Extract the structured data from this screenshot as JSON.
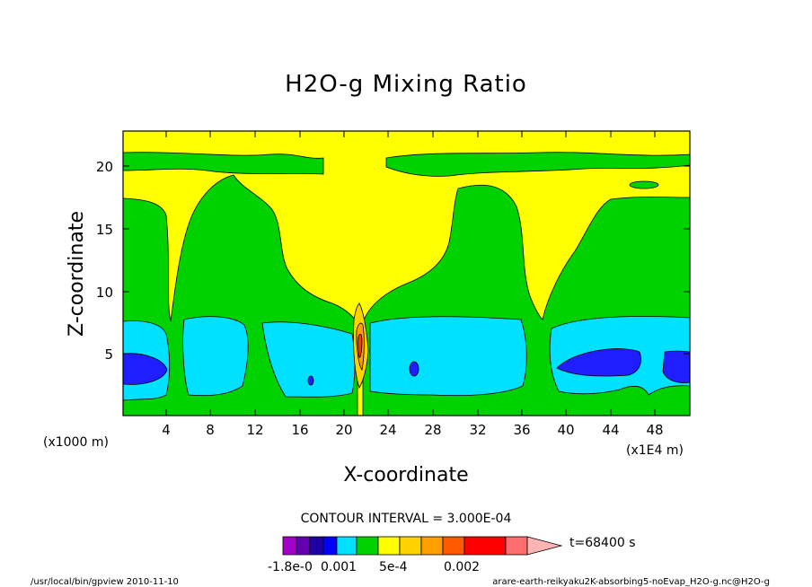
{
  "chart_data": {
    "type": "contour",
    "title": "H2O-g Mixing Ratio",
    "xlabel": "X-coordinate",
    "ylabel": "Z-coordinate",
    "x_unit_left": "(x1000 m)",
    "x_unit_right": "(x1E4 m)",
    "x_ticks": [
      "4",
      "8",
      "12",
      "16",
      "20",
      "24",
      "28",
      "32",
      "36",
      "40",
      "44",
      "48"
    ],
    "y_ticks": [
      "5",
      "10",
      "15",
      "20"
    ],
    "xlim": [
      0,
      52
    ],
    "ylim": [
      0,
      22.5
    ],
    "contour_interval_text": "CONTOUR INTERVAL = 3.000E-04",
    "time_label": "t=68400 s",
    "colorbar_labels": [
      "-1.8e-0",
      "0.001",
      "5e-4",
      "0.002"
    ],
    "colorbar_colors": [
      "#a000c8",
      "#6400b4",
      "#1e00a0",
      "#0000ff",
      "#00e1ff",
      "#00d200",
      "#ffff00",
      "#ffd200",
      "#ffa000",
      "#ff5a00",
      "#ff0000",
      "#ff6e6e",
      "#ffb4b4"
    ],
    "field_colors": {
      "yellow": "#ffff00",
      "green": "#00d200",
      "cyan": "#00e1ff",
      "blue": "#1e1eff",
      "orange": "#ffa000",
      "red": "#ff3c00"
    }
  },
  "footer": {
    "left": "/usr/local/bin/gpview  2010-11-10",
    "right": "arare-earth-reikyaku2K-absorbing5-noEvap_H2O-g.nc@H2O-g"
  }
}
